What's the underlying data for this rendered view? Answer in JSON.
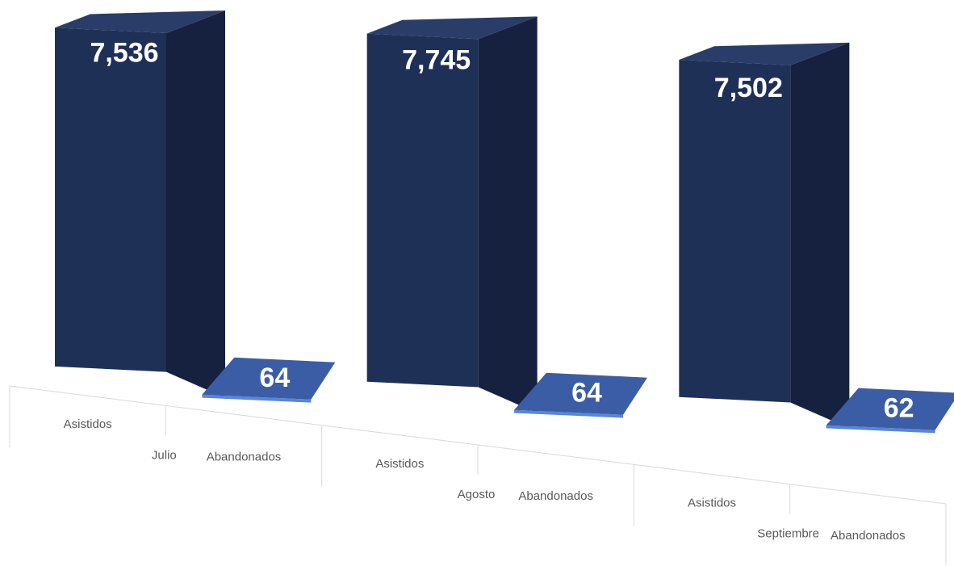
{
  "chart_data": {
    "type": "bar",
    "title": "",
    "xlabel": "",
    "ylabel": "",
    "groups": [
      {
        "name": "Julio",
        "bars": [
          {
            "category": "Asistidos",
            "value": 7536,
            "label": "7,536"
          },
          {
            "category": "Abandonados",
            "value": 64,
            "label": "64"
          }
        ]
      },
      {
        "name": "Agosto",
        "bars": [
          {
            "category": "Asistidos",
            "value": 7745,
            "label": "7,745"
          },
          {
            "category": "Abandonados",
            "value": 64,
            "label": "64"
          }
        ]
      },
      {
        "name": "Septiembre",
        "bars": [
          {
            "category": "Asistidos",
            "value": 7502,
            "label": "7,502"
          },
          {
            "category": "Abandonados",
            "value": 62,
            "label": "62"
          }
        ]
      }
    ],
    "colors": {
      "asistidos_front": "#1f3057",
      "asistidos_side": "#15213f",
      "asistidos_top": "#2a3c68",
      "abandonados_top": "#3a5da5",
      "abandonados_edge": "#5a86d3"
    },
    "style": "3d-perspective",
    "grid": false,
    "legend": "none"
  }
}
